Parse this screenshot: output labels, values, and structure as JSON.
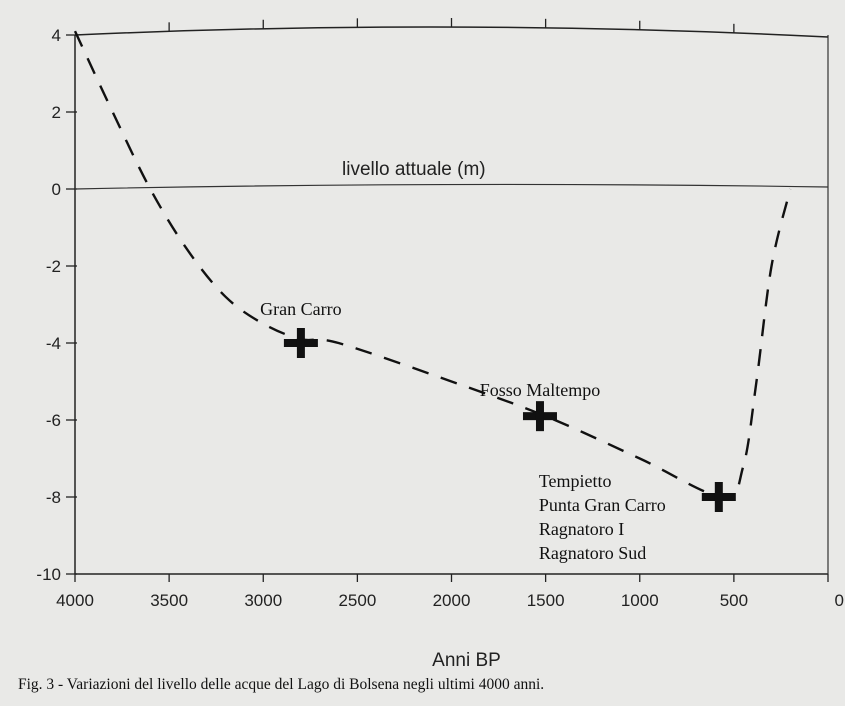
{
  "chart_data": {
    "type": "line",
    "xlabel": "Anni BP",
    "ylabel": "",
    "xlim": [
      4000,
      0
    ],
    "ylim": [
      -10,
      4
    ],
    "x_ticks": [
      {
        "value": 4000,
        "label": "4000"
      },
      {
        "value": 3500,
        "label": "3500"
      },
      {
        "value": 3000,
        "label": "3000"
      },
      {
        "value": 2500,
        "label": "2500"
      },
      {
        "value": 2000,
        "label": "2000"
      },
      {
        "value": 1500,
        "label": "1500"
      },
      {
        "value": 1000,
        "label": "1000"
      },
      {
        "value": 500,
        "label": "500"
      },
      {
        "value": 0,
        "label": "0"
      }
    ],
    "y_ticks": [
      {
        "value": 4,
        "label": "4"
      },
      {
        "value": 2,
        "label": "2"
      },
      {
        "value": 0,
        "label": "0"
      },
      {
        "value": -2,
        "label": "-2"
      },
      {
        "value": -4,
        "label": "-4"
      },
      {
        "value": -6,
        "label": "-6"
      },
      {
        "value": -8,
        "label": "-8"
      },
      {
        "value": -10,
        "label": "-10"
      }
    ],
    "reference_line": {
      "y": 0,
      "label": "livello attuale (m)"
    },
    "series": [
      {
        "style": "dashed",
        "x": [
          4000,
          3800,
          3600,
          3400,
          3200,
          3000,
          2800,
          2600,
          2000,
          1500,
          1000,
          560,
          450,
          380,
          300,
          200
        ],
        "y": [
          4.1,
          2.0,
          0.0,
          -1.6,
          -2.8,
          -3.5,
          -3.9,
          -4.0,
          -5.0,
          -5.9,
          -7.0,
          -8.0,
          -7.2,
          -5.0,
          -2.0,
          0.0
        ]
      }
    ],
    "sites": [
      {
        "x": 2800,
        "y": -4.0,
        "label_lines": [
          "Gran Carro"
        ]
      },
      {
        "x": 1530,
        "y": -5.9,
        "label_lines": [
          "Fosso Maltempo"
        ]
      },
      {
        "x": 580,
        "y": -8.0,
        "label_lines": [
          "Tempietto",
          "Punta Gran Carro",
          "Ragnatoro I",
          "Ragnatoro Sud"
        ]
      }
    ],
    "legend": "none",
    "grid": false
  },
  "caption": "Fig. 3 - Variazioni del livello delle acque del Lago di Bolsena negli ultimi 4000 anni."
}
